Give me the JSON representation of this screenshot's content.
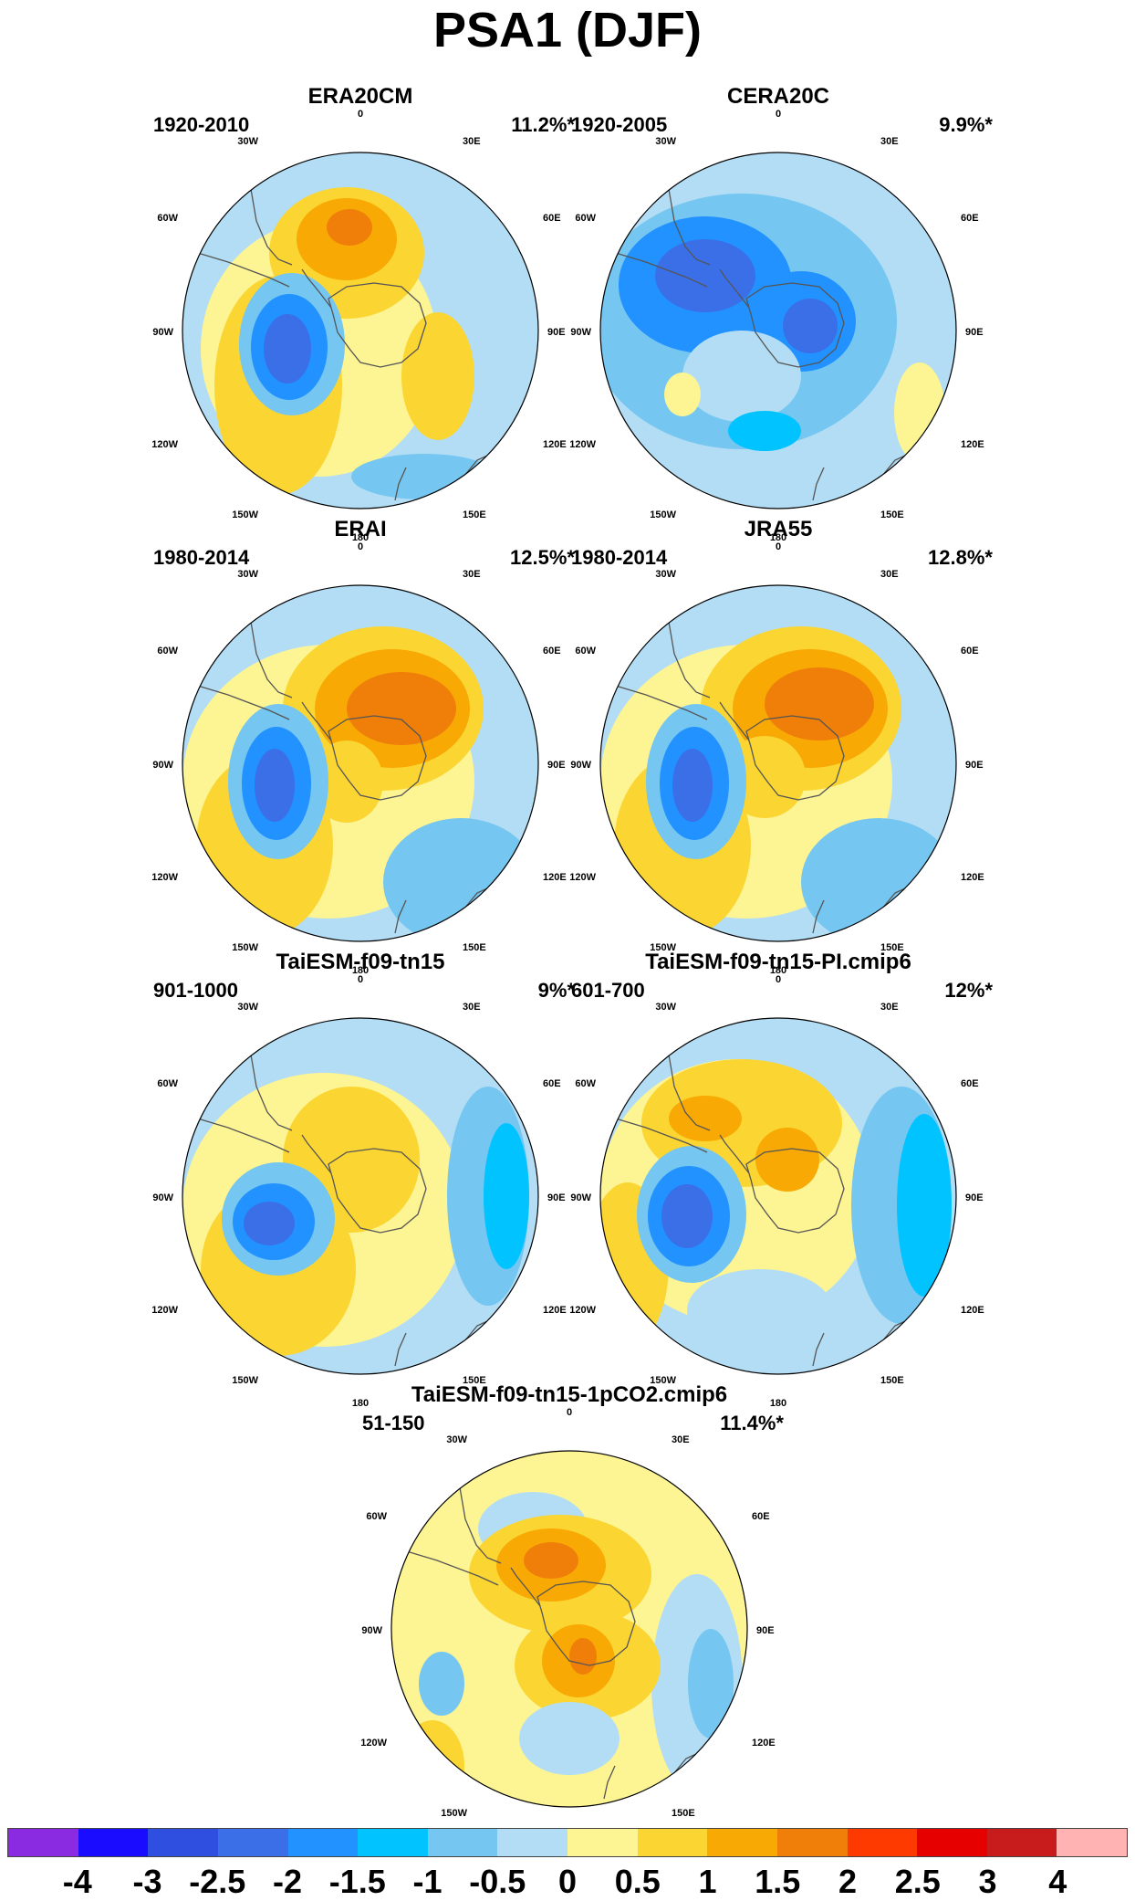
{
  "title": "PSA1 (DJF)",
  "panels": [
    {
      "id": "p1",
      "title": "ERA20CM",
      "period": "1920-2010",
      "pct": "11.2%*",
      "bg": "#b3ddf4",
      "blobs": [
        {
          "cx": 195,
          "cy": 290,
          "rx": 130,
          "ry": 140,
          "c": "#fdf493"
        },
        {
          "cx": 150,
          "cy": 330,
          "rx": 70,
          "ry": 120,
          "c": "#fbd532"
        },
        {
          "cx": 225,
          "cy": 185,
          "rx": 85,
          "ry": 72,
          "c": "#fbd532"
        },
        {
          "cx": 225,
          "cy": 170,
          "rx": 55,
          "ry": 45,
          "c": "#f8a904"
        },
        {
          "cx": 228,
          "cy": 157,
          "rx": 25,
          "ry": 20,
          "c": "#f07f0a"
        },
        {
          "cx": 325,
          "cy": 320,
          "rx": 40,
          "ry": 70,
          "c": "#fbd532"
        },
        {
          "cx": 165,
          "cy": 285,
          "rx": 58,
          "ry": 78,
          "c": "#75c6f0"
        },
        {
          "cx": 162,
          "cy": 288,
          "rx": 42,
          "ry": 58,
          "c": "#2192ff"
        },
        {
          "cx": 160,
          "cy": 290,
          "rx": 26,
          "ry": 38,
          "c": "#3a6fe8"
        },
        {
          "cx": 310,
          "cy": 430,
          "rx": 80,
          "ry": 25,
          "c": "#75c6f0"
        }
      ]
    },
    {
      "id": "p2",
      "title": "CERA20C",
      "period": "1920-2005",
      "pct": "9.9%*",
      "bg": "#b3ddf4",
      "blobs": [
        {
          "cx": 200,
          "cy": 260,
          "rx": 170,
          "ry": 140,
          "c": "#75c6f0"
        },
        {
          "cx": 160,
          "cy": 220,
          "rx": 95,
          "ry": 75,
          "c": "#2192ff"
        },
        {
          "cx": 160,
          "cy": 210,
          "rx": 55,
          "ry": 40,
          "c": "#3a6fe8"
        },
        {
          "cx": 265,
          "cy": 260,
          "rx": 60,
          "ry": 55,
          "c": "#2192ff"
        },
        {
          "cx": 275,
          "cy": 265,
          "rx": 30,
          "ry": 30,
          "c": "#3a6fe8"
        },
        {
          "cx": 200,
          "cy": 320,
          "rx": 65,
          "ry": 50,
          "c": "#b3ddf4"
        },
        {
          "cx": 135,
          "cy": 340,
          "rx": 20,
          "ry": 24,
          "c": "#fdf493"
        },
        {
          "cx": 225,
          "cy": 380,
          "rx": 40,
          "ry": 22,
          "c": "#00c3ff"
        },
        {
          "cx": 395,
          "cy": 360,
          "rx": 28,
          "ry": 55,
          "c": "#fdf493"
        }
      ]
    },
    {
      "id": "p3",
      "title": "ERAI",
      "period": "1980-2014",
      "pct": "12.5%*",
      "bg": "#b3ddf4",
      "blobs": [
        {
          "cx": 205,
          "cy": 290,
          "rx": 160,
          "ry": 150,
          "c": "#fdf493"
        },
        {
          "cx": 135,
          "cy": 360,
          "rx": 75,
          "ry": 100,
          "c": "#fbd532"
        },
        {
          "cx": 265,
          "cy": 210,
          "rx": 110,
          "ry": 90,
          "c": "#fbd532"
        },
        {
          "cx": 275,
          "cy": 210,
          "rx": 85,
          "ry": 65,
          "c": "#f8a904"
        },
        {
          "cx": 285,
          "cy": 210,
          "rx": 60,
          "ry": 40,
          "c": "#f07f0a"
        },
        {
          "cx": 225,
          "cy": 290,
          "rx": 40,
          "ry": 45,
          "c": "#fbd532"
        },
        {
          "cx": 150,
          "cy": 290,
          "rx": 55,
          "ry": 85,
          "c": "#75c6f0"
        },
        {
          "cx": 148,
          "cy": 292,
          "rx": 38,
          "ry": 62,
          "c": "#2192ff"
        },
        {
          "cx": 146,
          "cy": 294,
          "rx": 22,
          "ry": 40,
          "c": "#3a6fe8"
        },
        {
          "cx": 350,
          "cy": 400,
          "rx": 85,
          "ry": 70,
          "c": "#75c6f0"
        }
      ]
    },
    {
      "id": "p4",
      "title": "JRA55",
      "period": "1980-2014",
      "pct": "12.8%*",
      "bg": "#b3ddf4",
      "blobs": [
        {
          "cx": 205,
          "cy": 290,
          "rx": 160,
          "ry": 150,
          "c": "#fdf493"
        },
        {
          "cx": 135,
          "cy": 360,
          "rx": 75,
          "ry": 100,
          "c": "#fbd532"
        },
        {
          "cx": 265,
          "cy": 210,
          "rx": 110,
          "ry": 90,
          "c": "#fbd532"
        },
        {
          "cx": 275,
          "cy": 210,
          "rx": 85,
          "ry": 65,
          "c": "#f8a904"
        },
        {
          "cx": 285,
          "cy": 205,
          "rx": 60,
          "ry": 40,
          "c": "#f07f0a"
        },
        {
          "cx": 225,
          "cy": 285,
          "rx": 45,
          "ry": 45,
          "c": "#fbd532"
        },
        {
          "cx": 150,
          "cy": 290,
          "rx": 55,
          "ry": 85,
          "c": "#75c6f0"
        },
        {
          "cx": 148,
          "cy": 292,
          "rx": 38,
          "ry": 62,
          "c": "#2192ff"
        },
        {
          "cx": 146,
          "cy": 294,
          "rx": 22,
          "ry": 40,
          "c": "#3a6fe8"
        },
        {
          "cx": 350,
          "cy": 400,
          "rx": 85,
          "ry": 70,
          "c": "#75c6f0"
        }
      ]
    },
    {
      "id": "p5",
      "title": "TaiESM-f09-tn15",
      "period": "901-1000",
      "pct": "9%*",
      "bg": "#b3ddf4",
      "blobs": [
        {
          "cx": 200,
          "cy": 285,
          "rx": 155,
          "ry": 150,
          "c": "#fdf493"
        },
        {
          "cx": 150,
          "cy": 350,
          "rx": 85,
          "ry": 95,
          "c": "#fbd532"
        },
        {
          "cx": 230,
          "cy": 230,
          "rx": 75,
          "ry": 80,
          "c": "#fbd532"
        },
        {
          "cx": 380,
          "cy": 270,
          "rx": 45,
          "ry": 120,
          "c": "#75c6f0"
        },
        {
          "cx": 400,
          "cy": 270,
          "rx": 25,
          "ry": 80,
          "c": "#00c3ff"
        },
        {
          "cx": 150,
          "cy": 295,
          "rx": 62,
          "ry": 62,
          "c": "#75c6f0"
        },
        {
          "cx": 145,
          "cy": 298,
          "rx": 45,
          "ry": 42,
          "c": "#2192ff"
        },
        {
          "cx": 140,
          "cy": 300,
          "rx": 28,
          "ry": 24,
          "c": "#3a6fe8"
        }
      ]
    },
    {
      "id": "p6",
      "title": "TaiESM-f09-tn15-PI.cmip6",
      "period": "601-700",
      "pct": "12%*",
      "bg": "#b3ddf4",
      "blobs": [
        {
          "cx": 195,
          "cy": 265,
          "rx": 150,
          "ry": 145,
          "c": "#fdf493"
        },
        {
          "cx": 200,
          "cy": 190,
          "rx": 110,
          "ry": 70,
          "c": "#fbd532"
        },
        {
          "cx": 160,
          "cy": 185,
          "rx": 40,
          "ry": 25,
          "c": "#f8a904"
        },
        {
          "cx": 250,
          "cy": 230,
          "rx": 35,
          "ry": 35,
          "c": "#f8a904"
        },
        {
          "cx": 75,
          "cy": 345,
          "rx": 45,
          "ry": 90,
          "c": "#fbd532"
        },
        {
          "cx": 375,
          "cy": 280,
          "rx": 55,
          "ry": 130,
          "c": "#75c6f0"
        },
        {
          "cx": 400,
          "cy": 280,
          "rx": 30,
          "ry": 100,
          "c": "#00c3ff"
        },
        {
          "cx": 145,
          "cy": 290,
          "rx": 60,
          "ry": 75,
          "c": "#75c6f0"
        },
        {
          "cx": 142,
          "cy": 292,
          "rx": 45,
          "ry": 55,
          "c": "#2192ff"
        },
        {
          "cx": 140,
          "cy": 292,
          "rx": 28,
          "ry": 35,
          "c": "#3a6fe8"
        },
        {
          "cx": 220,
          "cy": 395,
          "rx": 80,
          "ry": 45,
          "c": "#b3ddf4"
        }
      ]
    },
    {
      "id": "p7",
      "title": "TaiESM-f09-tn15-1pCO2.cmip6",
      "period": "51-150",
      "pct": "11.4%*",
      "bg": "#fdf493",
      "blobs": [
        {
          "cx": 380,
          "cy": 330,
          "rx": 50,
          "ry": 120,
          "c": "#b3ddf4"
        },
        {
          "cx": 395,
          "cy": 330,
          "rx": 25,
          "ry": 60,
          "c": "#75c6f0"
        },
        {
          "cx": 200,
          "cy": 160,
          "rx": 60,
          "ry": 40,
          "c": "#b3ddf4"
        },
        {
          "cx": 100,
          "cy": 330,
          "rx": 25,
          "ry": 35,
          "c": "#75c6f0"
        },
        {
          "cx": 230,
          "cy": 210,
          "rx": 100,
          "ry": 65,
          "c": "#fbd532"
        },
        {
          "cx": 220,
          "cy": 200,
          "rx": 60,
          "ry": 40,
          "c": "#f8a904"
        },
        {
          "cx": 220,
          "cy": 195,
          "rx": 30,
          "ry": 20,
          "c": "#f07f0a"
        },
        {
          "cx": 260,
          "cy": 310,
          "rx": 80,
          "ry": 60,
          "c": "#fbd532"
        },
        {
          "cx": 250,
          "cy": 305,
          "rx": 40,
          "ry": 40,
          "c": "#f8a904"
        },
        {
          "cx": 255,
          "cy": 300,
          "rx": 15,
          "ry": 20,
          "c": "#f07f0a"
        },
        {
          "cx": 90,
          "cy": 420,
          "rx": 35,
          "ry": 50,
          "c": "#fbd532"
        },
        {
          "cx": 240,
          "cy": 390,
          "rx": 55,
          "ry": 40,
          "c": "#b3ddf4"
        }
      ]
    }
  ],
  "map_labels": {
    "top": "0",
    "top_left": "30W",
    "top_right": "30E",
    "upper_left": "60W",
    "upper_right": "60E",
    "left": "90W",
    "right": "90E",
    "lower_left": "120W",
    "lower_right": "120E",
    "bottom_left": "150W",
    "bottom_right": "150E",
    "bottom": "180"
  },
  "colorbar": {
    "colors": [
      "#8a2be2",
      "#1a0dff",
      "#2f4fe0",
      "#3a6fe8",
      "#2192ff",
      "#00c3ff",
      "#75c6f0",
      "#b3ddf4",
      "#fdf493",
      "#fbd532",
      "#f8a904",
      "#f07f0a",
      "#ff3a00",
      "#e60000",
      "#c81b1b",
      "#ffb3b3"
    ],
    "labels": [
      "-4",
      "-3",
      "-2.5",
      "-2",
      "-1.5",
      "-1",
      "-0.5",
      "0",
      "0.5",
      "1",
      "1.5",
      "2",
      "2.5",
      "3",
      "4"
    ]
  }
}
